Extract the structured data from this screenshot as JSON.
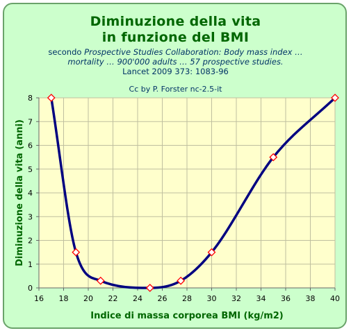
{
  "header": {
    "title_line1": "Diminuzione della vita",
    "title_line2": "in funzione del BMI",
    "subtitle_line1_prefix": "secondo ",
    "subtitle_line1_italic": "Prospective Studies Collaboration: Body mass index …",
    "subtitle_line2": "mortality … 900'000 adults … 57 prospective studies.",
    "subtitle_line3": "Lancet 2009 373: 1083-96",
    "credit": "Cc by P. Forster nc-2.5-it"
  },
  "colors": {
    "panel_bg": "#ccffcc",
    "plot_bg": "#ffffcc",
    "grid": "#bfbf9f",
    "line": "#000080",
    "marker_fill": "#ffffff",
    "marker_stroke": "#ff0000",
    "title": "#006600"
  },
  "chart_data": {
    "type": "line",
    "title": "Diminuzione della vita in funzione del BMI",
    "xlabel": "Indice di massa corporea BMI (kg/m2)",
    "ylabel": "Diminuzione della vita (anni)",
    "xlim": [
      16,
      40
    ],
    "ylim": [
      0,
      8
    ],
    "xticks": [
      16,
      18,
      20,
      22,
      24,
      26,
      28,
      30,
      32,
      34,
      36,
      38,
      40
    ],
    "yticks": [
      0,
      1,
      2,
      3,
      4,
      5,
      6,
      7,
      8
    ],
    "grid": true,
    "series": [
      {
        "x": [
          17,
          19,
          21,
          25,
          27.5,
          30,
          35,
          40
        ],
        "y": [
          8,
          1.5,
          0.3,
          0,
          0.3,
          1.5,
          5.5,
          8
        ],
        "marker": "diamond",
        "smooth": true
      }
    ]
  }
}
